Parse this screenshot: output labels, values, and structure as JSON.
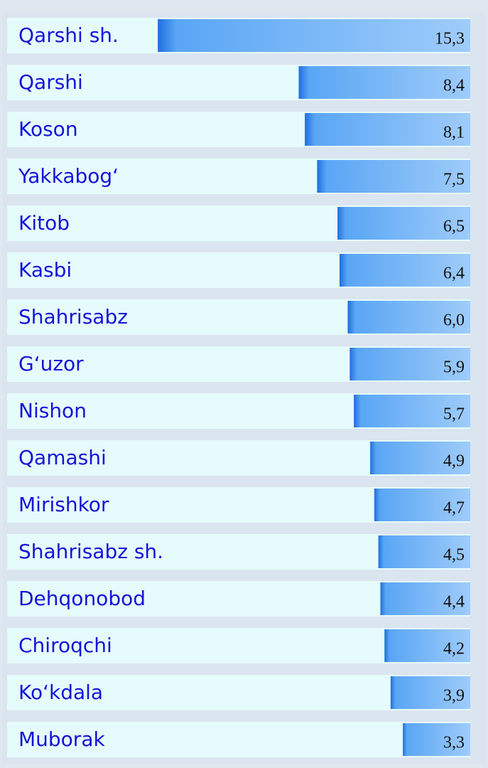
{
  "chart_data": {
    "type": "bar",
    "orientation": "horizontal",
    "categories": [
      "Qarshi sh.",
      "Qarshi",
      "Koson",
      "Yakkabog‘",
      "Kitob",
      "Kasbi",
      "Shahrisabz",
      "G‘uzor",
      "Nishon",
      "Qamashi",
      "Mirishkor",
      "Shahrisabz sh.",
      "Dehqonobod",
      "Chiroqchi",
      "Ko‘kdala",
      "Muborak"
    ],
    "values": [
      15.3,
      8.4,
      8.1,
      7.5,
      6.5,
      6.4,
      6.0,
      5.9,
      5.7,
      4.9,
      4.7,
      4.5,
      4.4,
      4.2,
      3.9,
      3.3
    ],
    "value_labels": [
      "15,3",
      "8,4",
      "8,1",
      "7,5",
      "6,5",
      "6,4",
      "6,0",
      "5,9",
      "5,7",
      "4,9",
      "4,7",
      "4,5",
      "4,4",
      "4,2",
      "3,9",
      "3,3"
    ],
    "color": "#4a9af2",
    "xlim": [
      0,
      16
    ]
  }
}
